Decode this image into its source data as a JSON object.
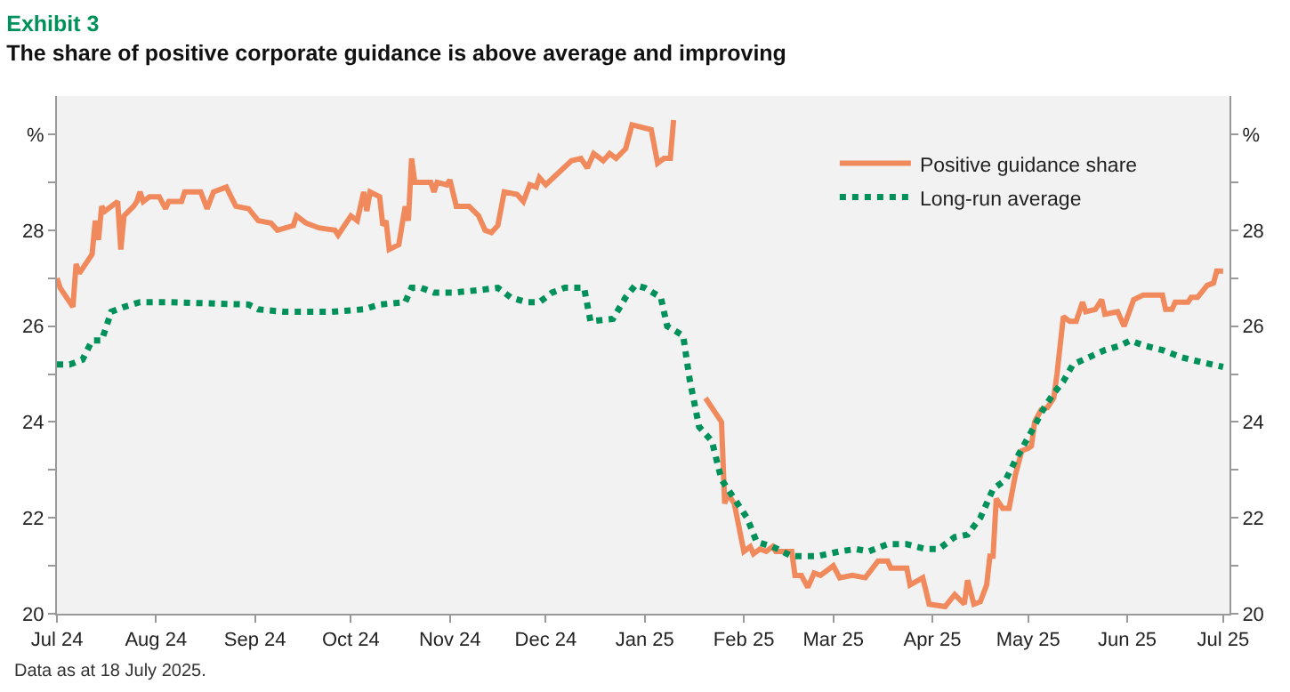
{
  "chart_data": {
    "type": "line",
    "title": "Exhibit 3",
    "subtitle": "The share of positive corporate guidance is above average and improving",
    "annotations": [
      "Data as at 18 July 2025."
    ],
    "xlim": [
      "2024-07-01",
      "2025-07-03"
    ],
    "xticks": [
      {
        "value": "2024-07-01",
        "label": "Jul 24"
      },
      {
        "value": "2024-08-01",
        "label": "Aug 24"
      },
      {
        "value": "2024-09-01",
        "label": "Sep 24"
      },
      {
        "value": "2024-10-01",
        "label": "Oct 24"
      },
      {
        "value": "2024-11-01",
        "label": "Nov 24"
      },
      {
        "value": "2024-12-01",
        "label": "Dec 24"
      },
      {
        "value": "2025-01-01",
        "label": "Jan 25"
      },
      {
        "value": "2025-02-01",
        "label": "Feb 25"
      },
      {
        "value": "2025-03-01",
        "label": "Mar 25"
      },
      {
        "value": "2025-04-01",
        "label": "Apr 25"
      },
      {
        "value": "2025-05-01",
        "label": "May 25"
      },
      {
        "value": "2025-06-01",
        "label": "Jun 25"
      },
      {
        "value": "2025-07-01",
        "label": "Jul 25"
      }
    ],
    "ylim": [
      20,
      30.8
    ],
    "yticks": [
      20,
      {
        "value": 21,
        "label": null
      },
      22,
      {
        "value": 23,
        "label": null
      },
      24,
      {
        "value": 25,
        "label": null
      },
      26,
      {
        "value": 27,
        "label": null
      },
      28,
      {
        "value": 29,
        "label": null
      },
      {
        "value": 30,
        "label": "%"
      }
    ],
    "y2lim": [
      20,
      30.8
    ],
    "y2ticks": [
      20,
      {
        "value": 21,
        "label": null
      },
      22,
      {
        "value": 23,
        "label": null
      },
      24,
      {
        "value": 25,
        "label": null
      },
      26,
      {
        "value": 27,
        "label": null
      },
      28,
      {
        "value": 29,
        "label": null
      },
      {
        "value": 30,
        "label": "%"
      }
    ],
    "grid": false,
    "legend": "top right",
    "marker": "none",
    "series": [
      {
        "name": "Positive guidance share",
        "color": "#f08a5d",
        "line_style": "solid",
        "x": [
          "2024-07-01",
          "2024-07-02",
          "2024-07-06",
          "2024-07-07",
          "2024-07-08",
          "2024-07-10",
          "2024-07-12",
          "2024-07-13",
          "2024-07-14",
          "2024-07-15",
          "2024-07-16",
          "2024-07-20",
          "2024-07-21",
          "2024-07-22",
          "2024-07-25",
          "2024-07-26",
          "2024-07-27",
          "2024-07-28",
          "2024-07-30",
          "2024-08-02",
          "2024-08-04",
          "2024-08-05",
          "2024-08-09",
          "2024-08-10",
          "2024-08-15",
          "2024-08-17",
          "2024-08-19",
          "2024-08-23",
          "2024-08-26",
          "2024-08-30",
          "2024-09-02",
          "2024-09-06",
          "2024-09-08",
          "2024-09-13",
          "2024-09-14",
          "2024-09-17",
          "2024-09-21",
          "2024-09-26",
          "2024-09-27",
          "2024-10-01",
          "2024-10-03",
          "2024-10-05",
          "2024-10-06",
          "2024-10-07",
          "2024-10-10",
          "2024-10-11",
          "2024-10-12",
          "2024-10-13",
          "2024-10-16",
          "2024-10-18",
          "2024-10-19",
          "2024-10-20",
          "2024-10-21",
          "2024-10-26",
          "2024-10-27",
          "2024-10-28",
          "2024-10-31",
          "2024-11-01",
          "2024-11-03",
          "2024-11-07",
          "2024-11-10",
          "2024-11-12",
          "2024-11-14",
          "2024-11-16",
          "2024-11-18",
          "2024-11-22",
          "2024-11-24",
          "2024-11-26",
          "2024-11-28",
          "2024-11-29",
          "2024-12-01",
          "2024-12-05",
          "2024-12-09",
          "2024-12-12",
          "2024-12-14",
          "2024-12-16",
          "2024-12-19",
          "2024-12-21",
          "2024-12-23",
          "2024-12-26",
          "2024-12-28",
          "2025-01-03",
          "2025-01-05",
          "2025-01-07",
          "2025-01-09",
          "2025-01-10",
          "2025-01-12",
          "2025-01-17",
          "2025-01-20",
          "2025-01-23",
          "2025-01-25",
          "2025-01-26",
          "2025-01-27",
          "2025-01-29",
          "2025-02-01",
          "2025-02-03",
          "2025-02-04",
          "2025-02-06",
          "2025-02-08",
          "2025-02-10",
          "2025-02-11",
          "2025-02-16",
          "2025-02-17",
          "2025-02-19",
          "2025-02-21",
          "2025-02-23",
          "2025-02-25",
          "2025-03-01",
          "2025-03-03",
          "2025-03-07",
          "2025-03-11",
          "2025-03-15",
          "2025-03-18",
          "2025-03-19",
          "2025-03-24",
          "2025-03-25",
          "2025-03-29",
          "2025-03-31",
          "2025-04-05",
          "2025-04-08",
          "2025-04-11",
          "2025-04-12",
          "2025-04-14",
          "2025-04-16",
          "2025-04-18",
          "2025-04-19",
          "2025-04-20",
          "2025-04-21",
          "2025-04-23",
          "2025-04-25",
          "2025-04-27",
          "2025-04-29",
          "2025-05-01",
          "2025-05-02",
          "2025-05-03",
          "2025-05-05",
          "2025-05-07",
          "2025-05-09",
          "2025-05-10",
          "2025-05-12",
          "2025-05-14",
          "2025-05-16",
          "2025-05-18",
          "2025-05-19",
          "2025-05-22",
          "2025-05-24",
          "2025-05-25",
          "2025-05-29",
          "2025-05-31",
          "2025-06-03",
          "2025-06-06",
          "2025-06-09",
          "2025-06-12",
          "2025-06-13",
          "2025-06-15",
          "2025-06-16",
          "2025-06-20",
          "2025-06-21",
          "2025-06-23",
          "2025-06-26",
          "2025-06-28",
          "2025-06-29",
          "2025-07-01"
        ],
        "values": [
          27.0,
          26.8,
          26.4,
          27.3,
          27.1,
          27.3,
          27.5,
          28.2,
          27.8,
          28.5,
          28.4,
          28.6,
          27.6,
          28.3,
          28.5,
          28.6,
          28.8,
          28.6,
          28.7,
          28.7,
          28.45,
          28.6,
          28.6,
          28.8,
          28.8,
          28.45,
          28.8,
          28.9,
          28.5,
          28.45,
          28.2,
          28.15,
          28.0,
          28.1,
          28.3,
          28.15,
          28.05,
          28.0,
          27.9,
          28.3,
          28.2,
          28.8,
          28.4,
          28.8,
          28.7,
          28.1,
          28.2,
          27.6,
          27.7,
          28.5,
          28.2,
          29.5,
          29.0,
          29.0,
          28.8,
          29.0,
          28.95,
          29.05,
          28.5,
          28.5,
          28.3,
          28.0,
          27.95,
          28.1,
          28.8,
          28.75,
          28.6,
          28.95,
          28.9,
          29.1,
          28.95,
          29.2,
          29.45,
          29.5,
          29.3,
          29.6,
          29.45,
          29.6,
          29.5,
          29.7,
          30.2,
          30.1,
          29.4,
          29.5,
          29.5,
          30.3,
          null,
          null,
          24.5,
          24.2,
          24.0,
          22.3,
          22.5,
          22.3,
          21.3,
          21.4,
          21.25,
          21.35,
          21.3,
          21.4,
          21.3,
          21.3,
          20.8,
          20.8,
          20.55,
          20.85,
          20.8,
          21.0,
          20.75,
          20.8,
          20.75,
          21.1,
          21.1,
          20.95,
          20.95,
          20.6,
          20.75,
          20.2,
          20.15,
          20.4,
          20.2,
          20.7,
          20.2,
          20.25,
          20.6,
          21.2,
          21.2,
          22.4,
          22.2,
          22.2,
          22.9,
          23.4,
          23.45,
          23.5,
          24.0,
          24.25,
          24.3,
          24.5,
          25.0,
          26.2,
          26.1,
          26.1,
          26.5,
          26.3,
          26.35,
          26.55,
          26.25,
          26.3,
          26.0,
          26.55,
          26.65,
          26.65,
          26.65,
          26.35,
          26.35,
          26.5,
          26.5,
          26.6,
          26.6,
          26.85,
          26.9,
          27.15,
          27.15
        ]
      },
      {
        "name": "Long-run average",
        "color": "#00915a",
        "line_style": "dotted",
        "x": [
          "2024-07-01",
          "2024-07-05",
          "2024-07-09",
          "2024-07-12",
          "2024-07-15",
          "2024-07-18",
          "2024-07-22",
          "2024-07-27",
          "2024-08-05",
          "2024-08-30",
          "2024-09-02",
          "2024-09-10",
          "2024-09-25",
          "2024-10-05",
          "2024-10-10",
          "2024-10-18",
          "2024-10-20",
          "2024-10-23",
          "2024-10-27",
          "2024-11-02",
          "2024-11-10",
          "2024-11-16",
          "2024-11-20",
          "2024-11-25",
          "2024-11-29",
          "2024-12-03",
          "2024-12-07",
          "2024-12-13",
          "2024-12-15",
          "2024-12-22",
          "2024-12-26",
          "2024-12-29",
          "2025-01-01",
          "2025-01-06",
          "2025-01-08",
          "2025-01-13",
          "2025-01-15",
          "2025-01-18",
          "2025-01-22",
          "2025-01-25",
          "2025-01-28",
          "2025-02-02",
          "2025-02-05",
          "2025-02-10",
          "2025-02-16",
          "2025-02-24",
          "2025-03-03",
          "2025-03-08",
          "2025-03-12",
          "2025-03-18",
          "2025-03-24",
          "2025-03-30",
          "2025-04-03",
          "2025-04-08",
          "2025-04-12",
          "2025-04-16",
          "2025-04-20",
          "2025-04-24",
          "2025-04-27",
          "2025-05-02",
          "2025-05-06",
          "2025-05-09",
          "2025-05-12",
          "2025-05-15",
          "2025-05-20",
          "2025-05-25",
          "2025-05-30",
          "2025-06-02",
          "2025-06-06",
          "2025-06-12",
          "2025-06-18",
          "2025-06-24",
          "2025-07-01"
        ],
        "values": [
          25.2,
          25.2,
          25.3,
          25.7,
          25.7,
          26.3,
          26.4,
          26.5,
          26.5,
          26.45,
          26.35,
          26.3,
          26.3,
          26.35,
          26.45,
          26.5,
          26.8,
          26.8,
          26.7,
          26.7,
          26.75,
          26.8,
          26.6,
          26.5,
          26.5,
          26.7,
          26.8,
          26.8,
          26.1,
          26.15,
          26.6,
          26.85,
          26.8,
          26.6,
          26.0,
          25.8,
          24.9,
          23.9,
          23.6,
          22.8,
          22.5,
          22.0,
          21.5,
          21.4,
          21.2,
          21.2,
          21.3,
          21.35,
          21.3,
          21.45,
          21.45,
          21.35,
          21.35,
          21.6,
          21.65,
          22.0,
          22.6,
          22.8,
          23.2,
          23.8,
          24.3,
          24.6,
          24.85,
          25.2,
          25.35,
          25.5,
          25.6,
          25.7,
          25.6,
          25.5,
          25.35,
          25.25,
          25.15
        ]
      }
    ]
  }
}
